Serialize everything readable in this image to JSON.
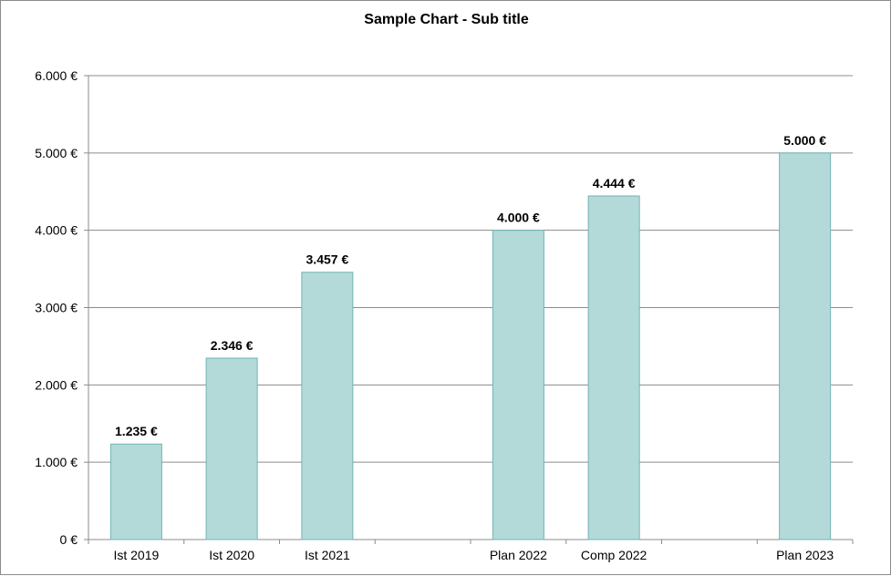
{
  "chart_data": {
    "type": "bar",
    "title": "Sample Chart - Sub title",
    "categories": [
      "Ist 2019",
      "Ist 2020",
      "Ist 2021",
      "",
      "Plan 2022",
      "Comp 2022",
      "",
      "Plan 2023"
    ],
    "values": [
      1235,
      2346,
      3457,
      null,
      4000,
      4444,
      null,
      5000
    ],
    "data_labels": [
      "1.235 €",
      "2.346 €",
      "3.457 €",
      "",
      "4.000 €",
      "4.444 €",
      "",
      "5.000 €"
    ],
    "ylim": [
      0,
      6000
    ],
    "yticks": [
      0,
      1000,
      2000,
      3000,
      4000,
      5000,
      6000
    ],
    "ytick_labels": [
      "0 €",
      "1.000 €",
      "2.000 €",
      "3.000 €",
      "4.000 €",
      "5.000 €",
      "6.000 €"
    ],
    "xlabel": "",
    "ylabel": "",
    "grid": true,
    "legend": "none",
    "colors": {
      "bar_fill": "#b4d9d9",
      "bar_stroke": "#6fb5b5",
      "grid": "#8c8c8c",
      "axis": "#8c8c8c"
    }
  }
}
